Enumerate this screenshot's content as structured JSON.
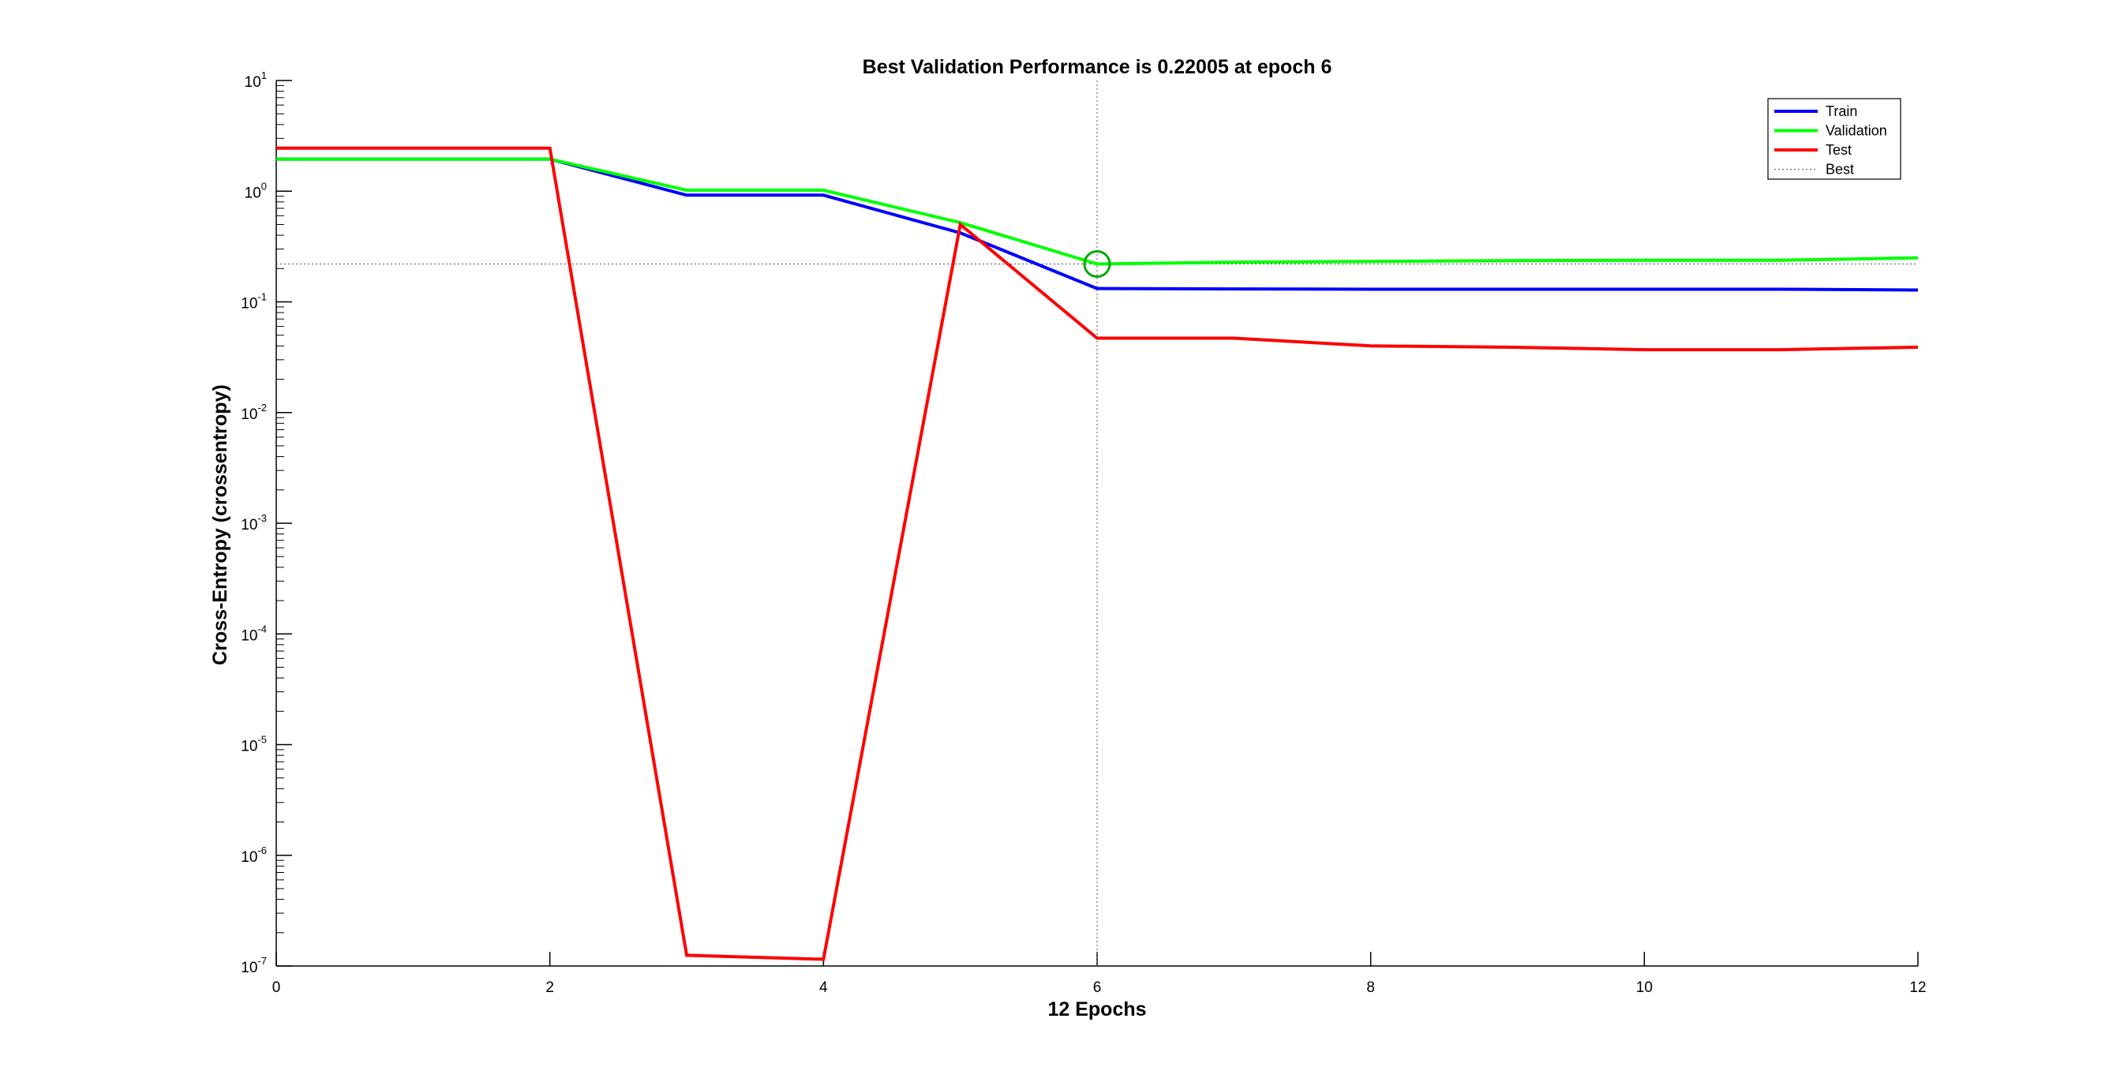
{
  "chart_data": {
    "type": "line",
    "title": "Best Validation Performance is 0.22005 at epoch 6",
    "xlabel": "12 Epochs",
    "ylabel": "Cross-Entropy  (crossentropy)",
    "xlim": [
      0,
      12
    ],
    "ylim": [
      1e-07,
      10
    ],
    "yscale": "log",
    "x_ticks": [
      "0",
      "2",
      "4",
      "6",
      "8",
      "10",
      "12"
    ],
    "y_ticks": [
      {
        "base": "10",
        "exp": "1",
        "value": 10
      },
      {
        "base": "10",
        "exp": "0",
        "value": 1
      },
      {
        "base": "10",
        "exp": "-1",
        "value": 0.1
      },
      {
        "base": "10",
        "exp": "-2",
        "value": 0.01
      },
      {
        "base": "10",
        "exp": "-3",
        "value": 0.001
      },
      {
        "base": "10",
        "exp": "-4",
        "value": 0.0001
      },
      {
        "base": "10",
        "exp": "-5",
        "value": 1e-05
      },
      {
        "base": "10",
        "exp": "-6",
        "value": 1e-06
      },
      {
        "base": "10",
        "exp": "-7",
        "value": 1e-07
      }
    ],
    "grid": false,
    "legend_position": "top-right",
    "x": [
      0,
      1,
      2,
      3,
      4,
      5,
      6,
      7,
      8,
      9,
      10,
      11,
      12
    ],
    "series": [
      {
        "name": "Train",
        "color": "#0000ff",
        "values": [
          1.95,
          1.95,
          1.95,
          0.92,
          0.92,
          0.42,
          0.132,
          0.131,
          0.13,
          0.13,
          0.13,
          0.13,
          0.128
        ]
      },
      {
        "name": "Validation",
        "color": "#00ff00",
        "values": [
          1.95,
          1.95,
          1.95,
          1.02,
          1.02,
          0.52,
          0.22005,
          0.228,
          0.232,
          0.236,
          0.238,
          0.238,
          0.25
        ]
      },
      {
        "name": "Test",
        "color": "#ff0000",
        "values": [
          2.45,
          2.45,
          2.45,
          1.25e-07,
          1.15e-07,
          0.5,
          0.047,
          0.047,
          0.04,
          0.039,
          0.037,
          0.037,
          0.039
        ]
      }
    ],
    "best": {
      "name": "Best",
      "epoch": 6,
      "value": 0.22005,
      "color": "#00aa00"
    }
  }
}
